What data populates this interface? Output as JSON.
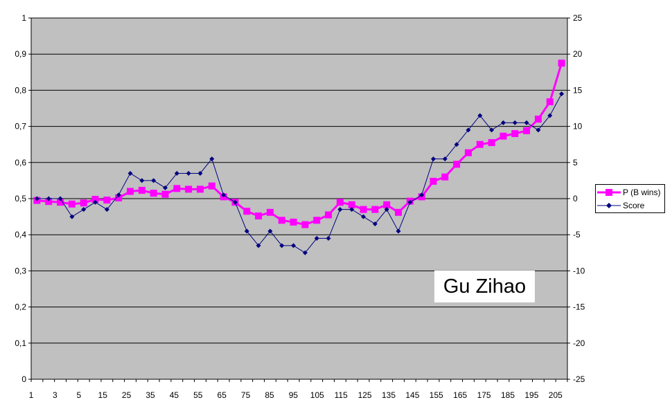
{
  "colors": {
    "plot_bg": "#c0c0c0",
    "grid": "#000000",
    "p_series": "#ff00ff",
    "score_series": "#000080"
  },
  "chart_data": {
    "type": "line",
    "title": "",
    "annotation": "Gu Zihao",
    "grid": true,
    "legend_position": "right",
    "x_tick_labels": [
      "1",
      "3",
      "5",
      "15",
      "25",
      "35",
      "45",
      "55",
      "65",
      "75",
      "85",
      "95",
      "105",
      "115",
      "125",
      "135",
      "145",
      "155",
      "165",
      "175",
      "185",
      "195",
      "205"
    ],
    "y_left": {
      "ylim": [
        0,
        1
      ],
      "tick_labels": [
        "0",
        "0,1",
        "0,2",
        "0,3",
        "0,4",
        "0,5",
        "0,6",
        "0,7",
        "0,8",
        "0,9",
        "1"
      ]
    },
    "y_right": {
      "ylim": [
        -25,
        25
      ],
      "tick_labels": [
        "-25",
        "-20",
        "-15",
        "-10",
        "-5",
        "0",
        "5",
        "10",
        "15",
        "20",
        "25"
      ]
    },
    "series": [
      {
        "name": "P (B wins)",
        "axis": "left",
        "color": "#ff00ff",
        "marker": "square",
        "values": [
          0.495,
          0.492,
          0.49,
          0.485,
          0.488,
          0.498,
          0.496,
          0.502,
          0.52,
          0.523,
          0.515,
          0.512,
          0.528,
          0.526,
          0.526,
          0.535,
          0.505,
          0.49,
          0.465,
          0.452,
          0.462,
          0.44,
          0.435,
          0.428,
          0.44,
          0.455,
          0.49,
          0.483,
          0.47,
          0.47,
          0.483,
          0.462,
          0.493,
          0.505,
          0.548,
          0.56,
          0.595,
          0.627,
          0.65,
          0.655,
          0.673,
          0.68,
          0.688,
          0.72,
          0.768,
          0.875
        ]
      },
      {
        "name": "Score",
        "axis": "right",
        "color": "#000080",
        "marker": "diamond",
        "values": [
          0,
          0,
          0,
          -2.5,
          -1.5,
          -0.5,
          -1.5,
          0.5,
          3.5,
          2.5,
          2.5,
          1.5,
          3.5,
          3.5,
          3.5,
          5.5,
          0.5,
          -0.5,
          -4.5,
          -6.5,
          -4.5,
          -6.5,
          -6.5,
          -7.5,
          -5.5,
          -5.5,
          -1.5,
          -1.5,
          -2.5,
          -3.5,
          -1.5,
          -4.5,
          -0.5,
          0.5,
          5.5,
          5.5,
          7.5,
          9.5,
          11.5,
          9.5,
          10.5,
          10.5,
          10.5,
          9.5,
          11.5,
          14.5
        ]
      }
    ]
  }
}
